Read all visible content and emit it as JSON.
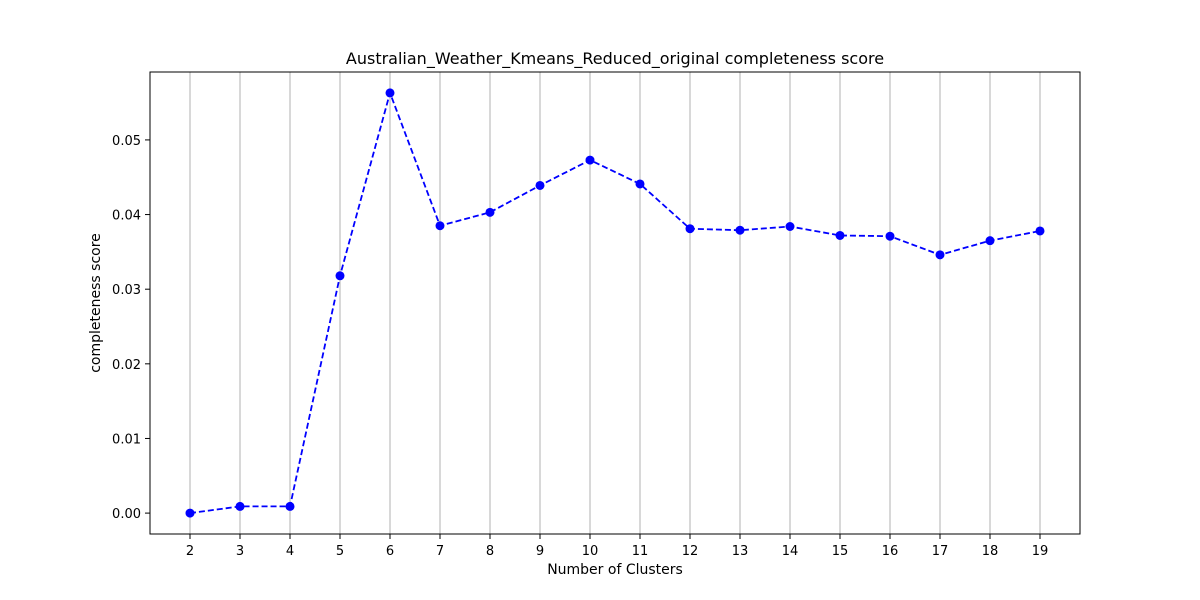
{
  "chart_data": {
    "type": "line",
    "title": "Australian_Weather_Kmeans_Reduced_original completeness score",
    "xlabel": "Number of Clusters",
    "ylabel": "completeness score",
    "x": [
      2,
      3,
      4,
      5,
      6,
      7,
      8,
      9,
      10,
      11,
      12,
      13,
      14,
      15,
      16,
      17,
      18,
      19
    ],
    "series": [
      {
        "values": [
          0.0,
          0.0009,
          0.0009,
          0.0318,
          0.0563,
          0.0385,
          0.0403,
          0.0439,
          0.0473,
          0.0441,
          0.0381,
          0.0379,
          0.0384,
          0.0372,
          0.0371,
          0.0346,
          0.0365,
          0.0378
        ],
        "color": "#0000ff",
        "line_style": "dashed",
        "marker": "circle"
      }
    ],
    "y_ticks": [
      0.0,
      0.01,
      0.02,
      0.03,
      0.04,
      0.05
    ],
    "y_tick_labels": [
      "0.00",
      "0.01",
      "0.02",
      "0.03",
      "0.04",
      "0.05"
    ],
    "ylim": [
      -0.0028,
      0.0591
    ],
    "xlim": [
      1.2,
      19.8
    ],
    "grid": "x-only",
    "grid_color": "#b0b0b0"
  }
}
